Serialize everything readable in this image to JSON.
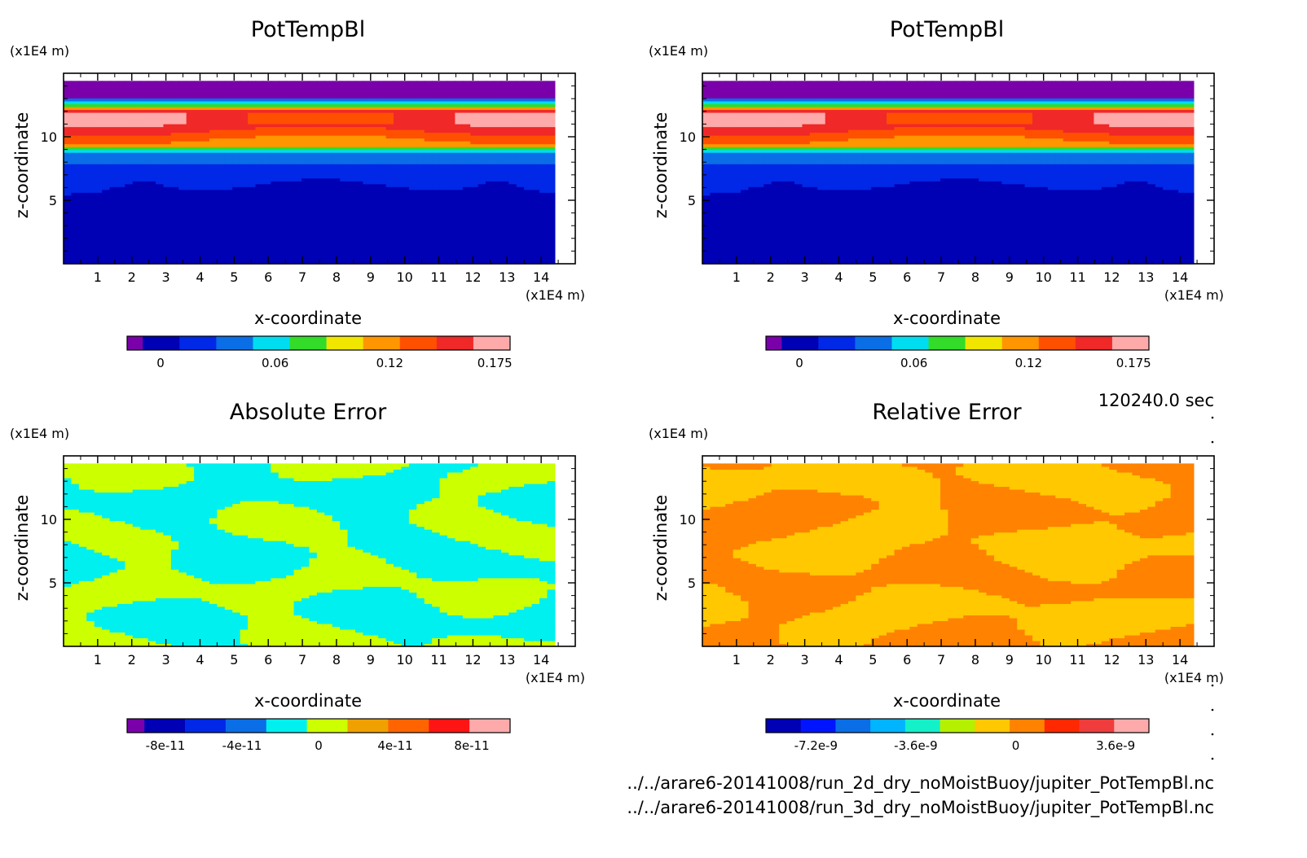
{
  "chart_data": [
    {
      "type": "heatmap",
      "title": "PotTempBl",
      "xlabel": "x-coordinate",
      "ylabel": "z-coordinate",
      "x_unit": "(x1E4 m)",
      "y_unit": "(x1E4 m)",
      "xlim": [
        0,
        15
      ],
      "ylim": [
        0,
        15
      ],
      "x_ticks": [
        "1",
        "2",
        "3",
        "4",
        "5",
        "6",
        "7",
        "8",
        "9",
        "10",
        "11",
        "12",
        "13",
        "14"
      ],
      "y_ticks": [
        "5",
        "10"
      ],
      "colors": [
        "#7a00aa",
        "#0000b4",
        "#0028e6",
        "#0a6ee6",
        "#00dcf0",
        "#32dc28",
        "#f0e600",
        "#ff9600",
        "#ff5000",
        "#f02828",
        "#ffaaaa"
      ],
      "colorbar_labels": [
        "0",
        "0.06",
        "0.12",
        "0.175"
      ],
      "colorbar_values": [
        0,
        0.06,
        0.12,
        0.175
      ],
      "colorbar_range": [
        -0.0175,
        0.183
      ],
      "field": "pottemp"
    },
    {
      "type": "heatmap",
      "title": "PotTempBl",
      "xlabel": "x-coordinate",
      "ylabel": "z-coordinate",
      "x_unit": "(x1E4 m)",
      "y_unit": "(x1E4 m)",
      "xlim": [
        0,
        15
      ],
      "ylim": [
        0,
        15
      ],
      "x_ticks": [
        "1",
        "2",
        "3",
        "4",
        "5",
        "6",
        "7",
        "8",
        "9",
        "10",
        "11",
        "12",
        "13",
        "14"
      ],
      "y_ticks": [
        "5",
        "10"
      ],
      "colors": [
        "#7a00aa",
        "#0000b4",
        "#0028e6",
        "#0a6ee6",
        "#00dcf0",
        "#32dc28",
        "#f0e600",
        "#ff9600",
        "#ff5000",
        "#f02828",
        "#ffaaaa"
      ],
      "colorbar_labels": [
        "0",
        "0.06",
        "0.12",
        "0.175"
      ],
      "colorbar_values": [
        0,
        0.06,
        0.12,
        0.175
      ],
      "colorbar_range": [
        -0.0175,
        0.183
      ],
      "field": "pottemp"
    },
    {
      "type": "heatmap",
      "title": "Absolute Error",
      "xlabel": "x-coordinate",
      "ylabel": "z-coordinate",
      "x_unit": "(x1E4 m)",
      "y_unit": "(x1E4 m)",
      "xlim": [
        0,
        15
      ],
      "ylim": [
        0,
        15
      ],
      "x_ticks": [
        "1",
        "2",
        "3",
        "4",
        "5",
        "6",
        "7",
        "8",
        "9",
        "10",
        "11",
        "12",
        "13",
        "14"
      ],
      "y_ticks": [
        "5",
        "10"
      ],
      "colors": [
        "#7a00aa",
        "#0000b4",
        "#0028e6",
        "#0a6ee6",
        "#00f0f0",
        "#ccff00",
        "#f0a000",
        "#ff6400",
        "#ff1414",
        "#ffaaaa"
      ],
      "colorbar_labels": [
        "-8e-11",
        "-4e-11",
        "0",
        "4e-11",
        "8e-11"
      ],
      "colorbar_values": [
        -8e-11,
        -4e-11,
        0,
        4e-11,
        8e-11
      ],
      "colorbar_range": [
        -1e-10,
        1e-10
      ],
      "field": "abserr"
    },
    {
      "type": "heatmap",
      "title": "Relative Error",
      "xlabel": "x-coordinate",
      "ylabel": "z-coordinate",
      "x_unit": "(x1E4 m)",
      "y_unit": "(x1E4 m)",
      "xlim": [
        0,
        15
      ],
      "ylim": [
        0,
        15
      ],
      "x_ticks": [
        "1",
        "2",
        "3",
        "4",
        "5",
        "6",
        "7",
        "8",
        "9",
        "10",
        "11",
        "12",
        "13",
        "14"
      ],
      "y_ticks": [
        "5",
        "10"
      ],
      "colors": [
        "#0000b4",
        "#0014ff",
        "#0a6ee6",
        "#00b4ff",
        "#14f0c8",
        "#b4f000",
        "#ffc800",
        "#ff8200",
        "#ff2800",
        "#f03c3c",
        "#ffaaaa"
      ],
      "colorbar_labels": [
        "-7.2e-9",
        "-3.6e-9",
        "0",
        "3.6e-9"
      ],
      "colorbar_values": [
        -7.2e-09,
        -3.6e-09,
        0,
        3.6e-09
      ],
      "colorbar_range": [
        -9e-09,
        4.8e-09
      ],
      "field": "relerr"
    }
  ],
  "info": {
    "time": "120240.0 sec",
    "file1": "../../arare6-20141008/run_2d_dry_noMoistBuoy/jupiter_PotTempBl.nc",
    "file2": "../../arare6-20141008/run_3d_dry_noMoistBuoy/jupiter_PotTempBl.nc"
  }
}
